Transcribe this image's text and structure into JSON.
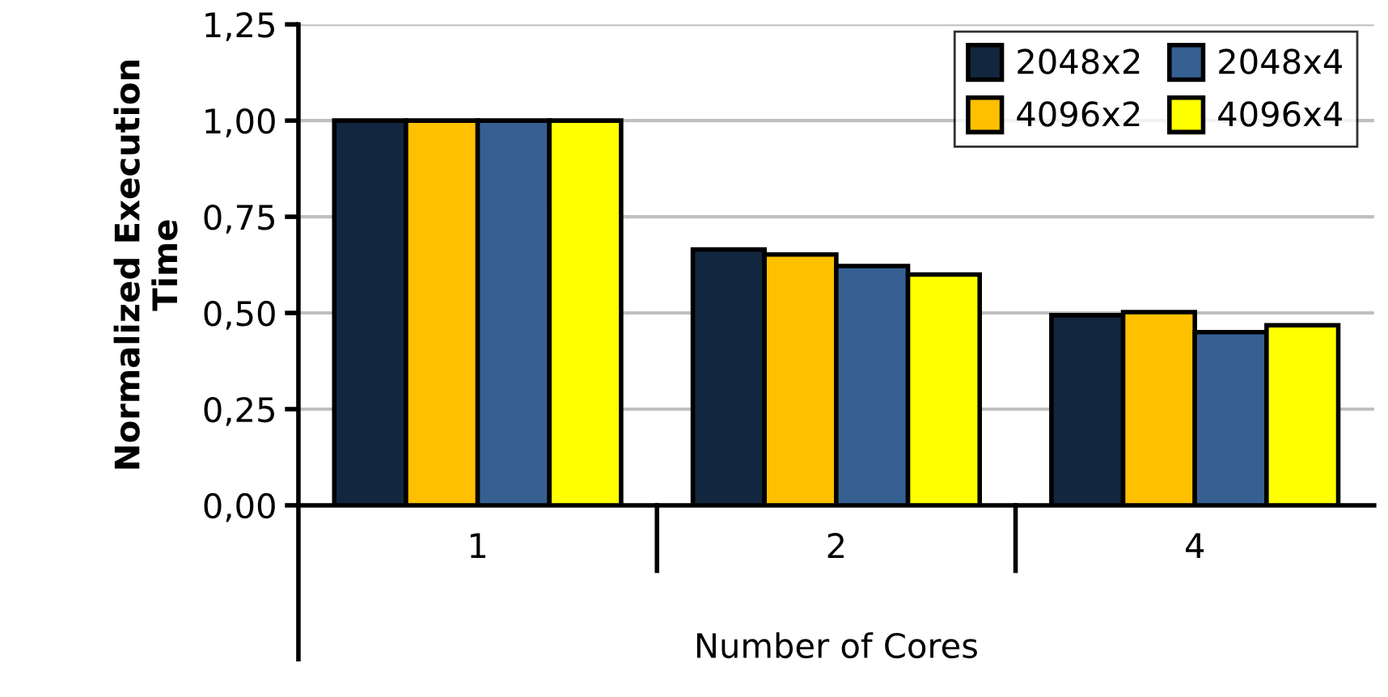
{
  "chart_data": {
    "type": "bar",
    "xlabel": "Number of Cores",
    "ylabel": "Normalized Execution\nTime",
    "categories": [
      "1",
      "2",
      "4"
    ],
    "series": [
      {
        "name": "2048x2",
        "color": "#12263f",
        "values": [
          1.0,
          0.665,
          0.494
        ]
      },
      {
        "name": "4096x2",
        "color": "#ffc000",
        "values": [
          1.0,
          0.652,
          0.502
        ]
      },
      {
        "name": "2048x4",
        "color": "#366092",
        "values": [
          1.0,
          0.622,
          0.45
        ]
      },
      {
        "name": "4096x4",
        "color": "#ffff00",
        "values": [
          1.0,
          0.6,
          0.468
        ]
      }
    ],
    "ylim": [
      0,
      1.25
    ],
    "yticks": [
      {
        "value": 0,
        "label": "0,00"
      },
      {
        "value": 0.25,
        "label": "0,25"
      },
      {
        "value": 0.5,
        "label": "0,50"
      },
      {
        "value": 0.75,
        "label": "0,75"
      },
      {
        "value": 1.0,
        "label": "1,00"
      },
      {
        "value": 1.25,
        "label": "1,25"
      }
    ],
    "grid": "y",
    "legend": "top right"
  }
}
